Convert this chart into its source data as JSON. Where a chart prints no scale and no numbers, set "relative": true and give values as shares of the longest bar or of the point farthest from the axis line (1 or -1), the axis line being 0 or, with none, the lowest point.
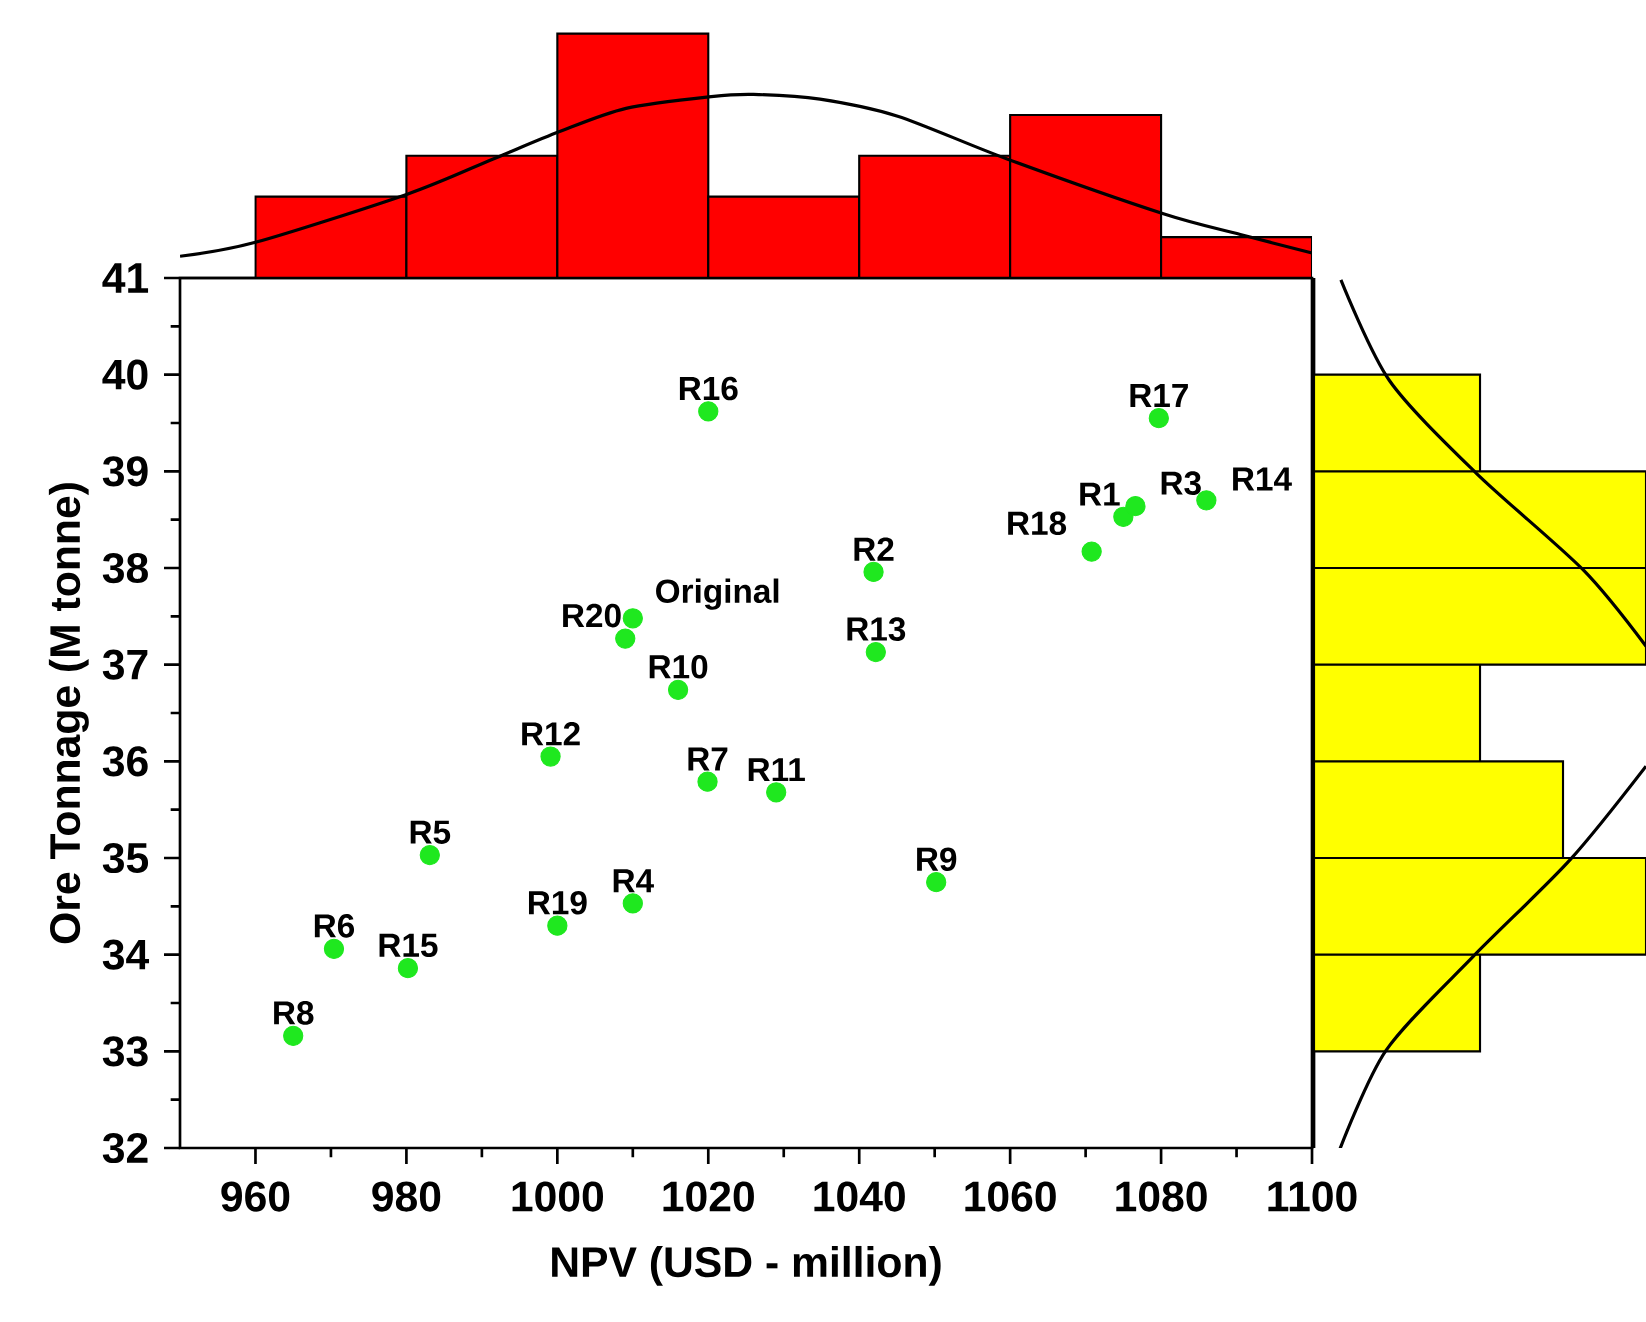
{
  "chart_data": [
    {
      "type": "histogram",
      "relative": true,
      "xlim": [
        950,
        1100
      ],
      "tick_labels": false,
      "series": [
        {
          "type": "histogram",
          "color": "#ff0000",
          "bins": [
            960,
            980,
            1000,
            1020,
            1040,
            1060,
            1080,
            1100
          ],
          "values": [
            0.333,
            0.5,
            1,
            0.333,
            0.5,
            0.667,
            0.167
          ]
        },
        {
          "type": "line",
          "color": "#000000",
          "x": [
            950,
            960,
            980.2,
            991.5,
            1000.3,
            1009.1,
            1020.4,
            1026,
            1034.8,
            1045.1,
            1059.6,
            1080.2,
            1090.5,
            1100
          ],
          "values": [
            0.089,
            0.146,
            0.344,
            0.487,
            0.599,
            0.694,
            0.742,
            0.751,
            0.732,
            0.662,
            0.487,
            0.264,
            0.178,
            0.102
          ]
        }
      ]
    },
    {
      "type": "scatter",
      "xlabel": "NPV (USD - million)",
      "ylabel": "Ore Tonnage (M tonne)",
      "xlim": [
        950,
        1100
      ],
      "ylim": [
        32,
        41
      ],
      "xticks": [
        960,
        980,
        1000,
        1020,
        1040,
        1060,
        1080,
        1100
      ],
      "yticks": [
        32,
        33,
        34,
        35,
        36,
        37,
        38,
        39,
        40,
        41
      ],
      "series": [
        {
          "color": "#1fe81f",
          "x": [
            965.0,
            970.4,
            980.2,
            983.1,
            1000.0,
            1010.0,
            999.1,
            1009.0,
            1010.0,
            1016.0,
            1019.9,
            1020.0,
            1029.0,
            1041.9,
            1042.2,
            1050.2,
            1070.8,
            1075.0,
            1076.6,
            1079.7,
            1086.0
          ],
          "values": [
            33.16,
            34.06,
            33.86,
            35.03,
            34.3,
            34.53,
            36.05,
            37.27,
            37.48,
            36.74,
            35.79,
            39.62,
            35.68,
            37.96,
            37.13,
            34.75,
            38.17,
            38.53,
            38.64,
            39.55,
            38.7
          ],
          "value_labels": [
            "R8",
            "R6",
            "R15",
            "R5",
            "R19",
            "R4",
            "R12",
            "R20",
            "Original",
            "R10",
            "R7",
            "R16",
            "R11",
            "R2",
            "R13",
            "R9",
            "R18",
            "R1",
            "R3",
            "R17",
            "R14"
          ]
        }
      ]
    },
    {
      "type": "histogram",
      "orientation": "horizontal",
      "relative": true,
      "ylim": [
        32,
        41
      ],
      "tick_labels": false,
      "series": [
        {
          "type": "histogram",
          "color": "#ffff00",
          "bins": [
            33,
            34,
            35,
            36,
            37,
            38,
            39,
            40
          ],
          "values": [
            0.5,
            1,
            0.75,
            0.5,
            1,
            1,
            0.5
          ]
        },
        {
          "type": "line",
          "color": "#000000",
          "x": [
            40.98,
            39.94,
            38.98,
            37.98,
            37.19,
            null,
            35.95,
            34.98,
            33.98,
            33.01,
            31.98
          ],
          "values": [
            0.081,
            0.227,
            0.489,
            0.811,
            1.0,
            null,
            1.0,
            0.771,
            0.479,
            0.217,
            0.077
          ]
        }
      ]
    }
  ]
}
